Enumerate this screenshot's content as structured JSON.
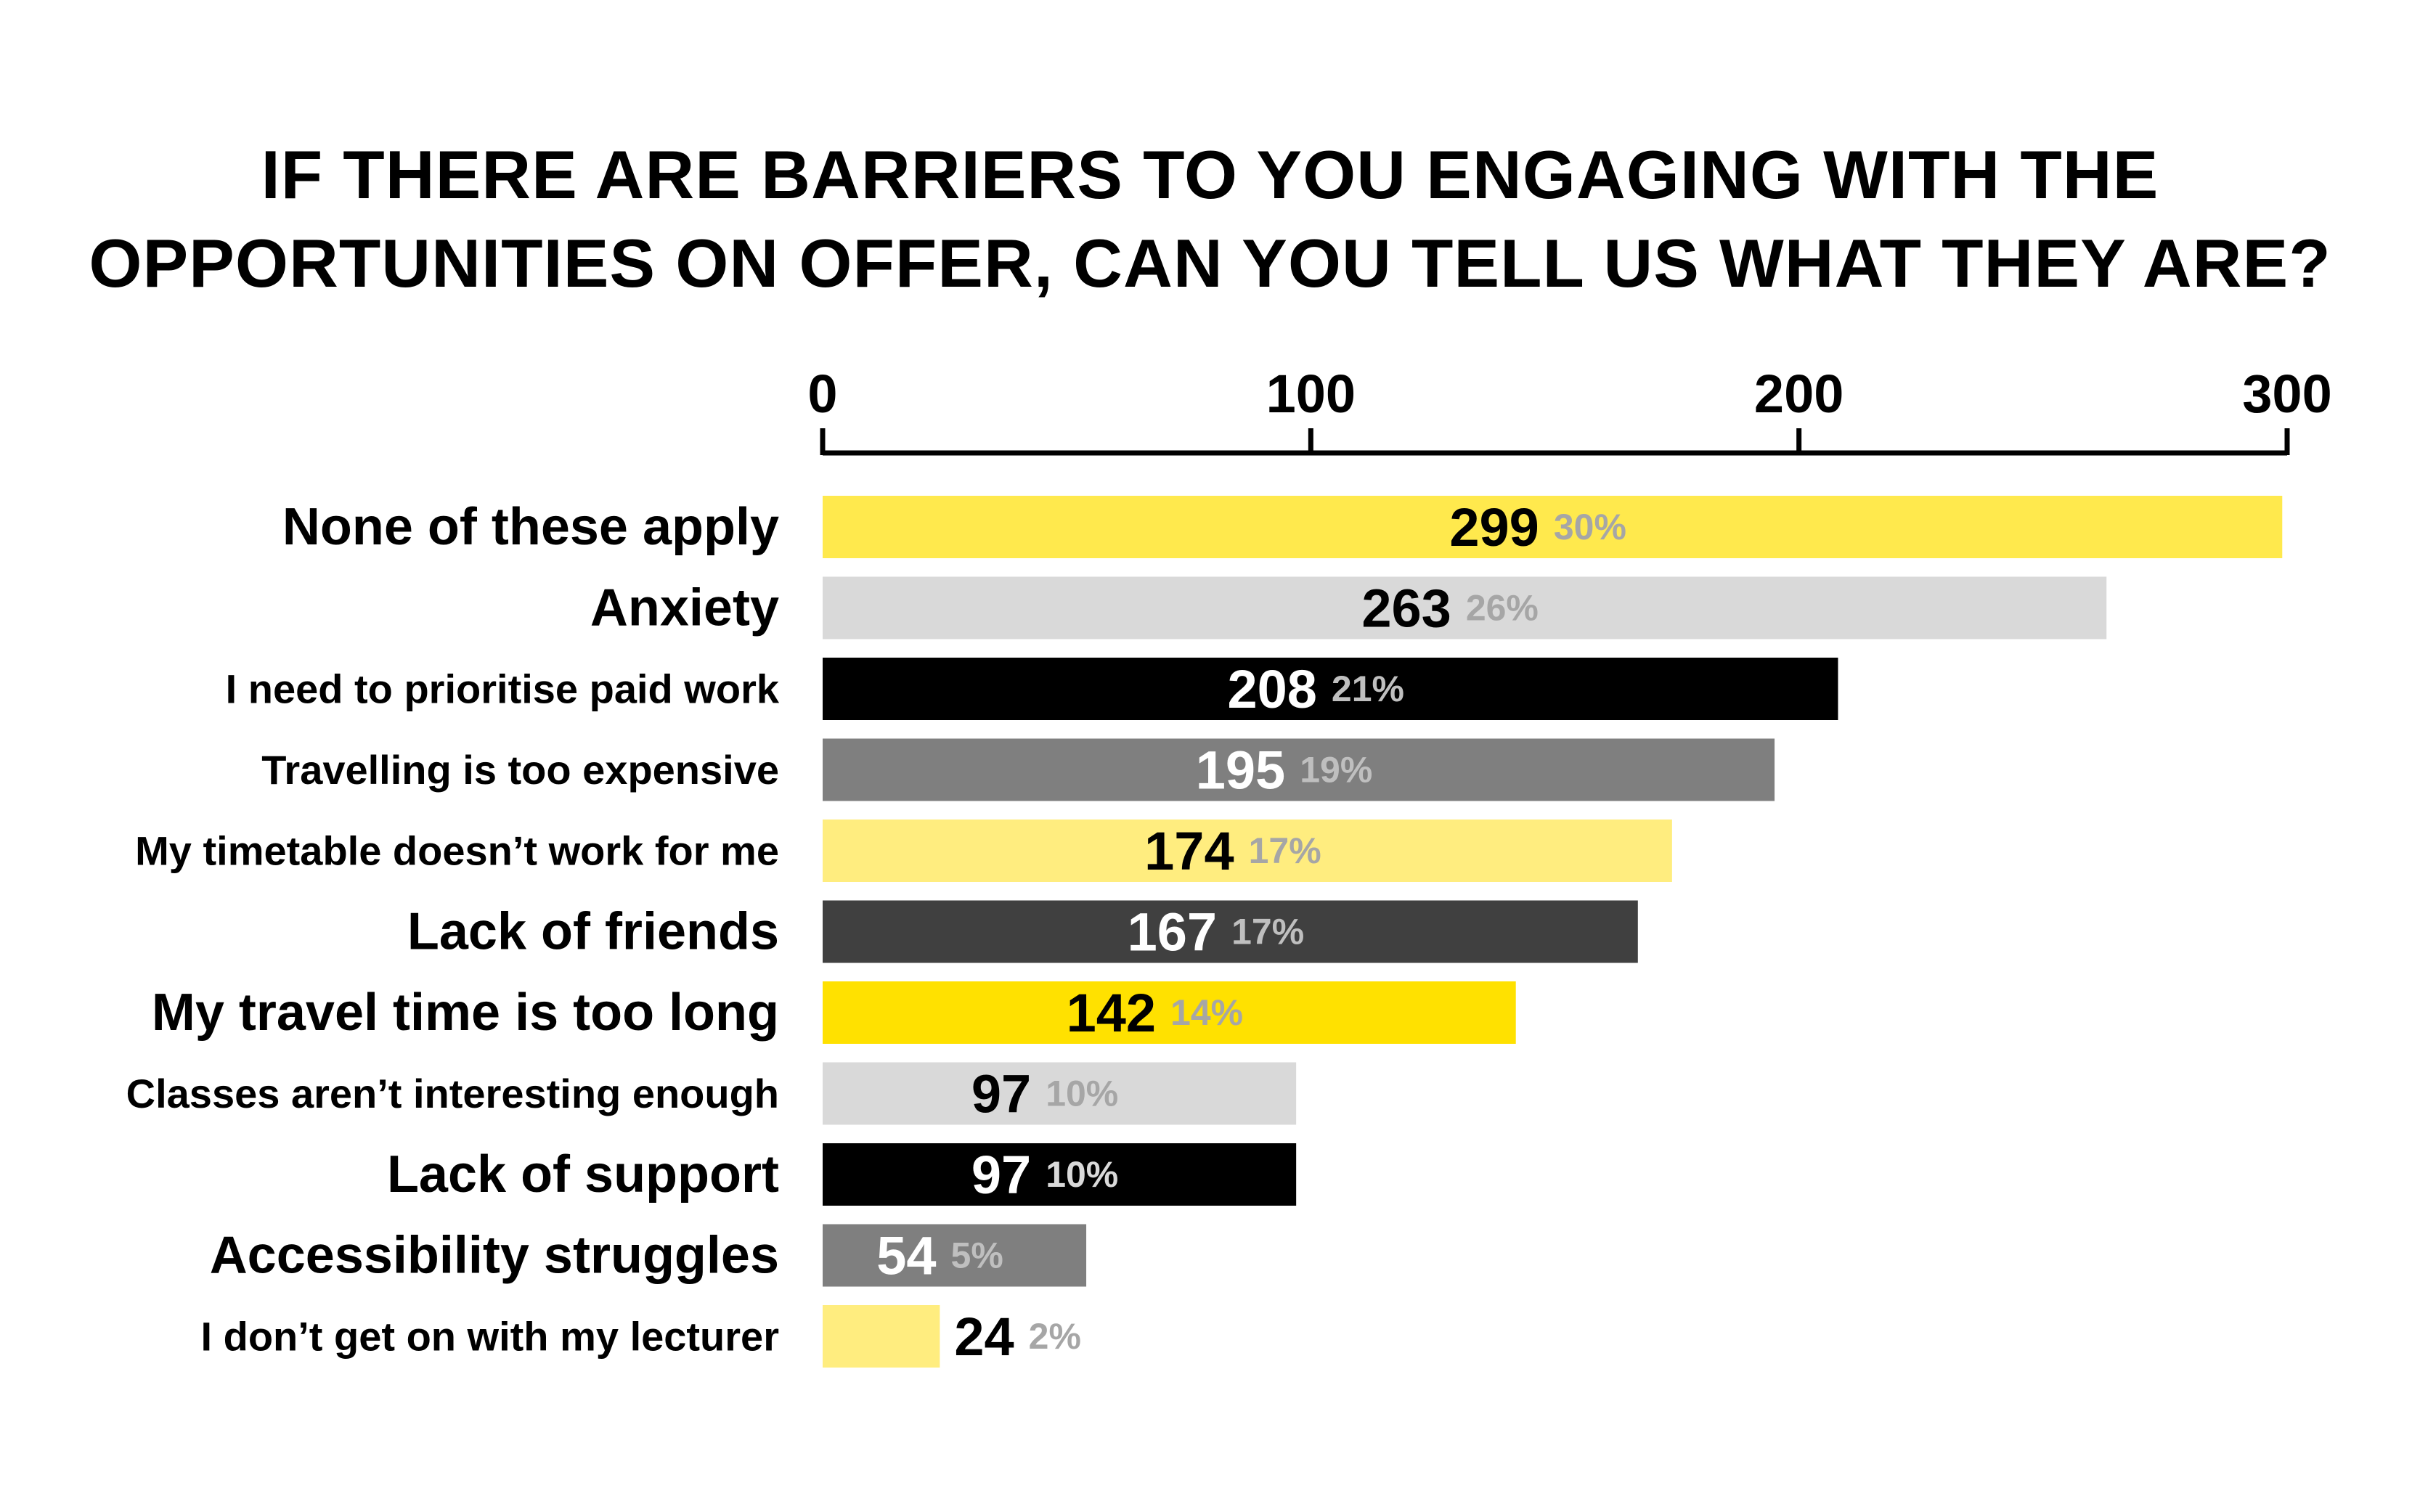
{
  "chart_data": {
    "type": "bar",
    "orientation": "horizontal",
    "title_lines": [
      "IF THERE ARE BARRIERS TO YOU ENGAGING WITH THE",
      "OPPORTUNITIES ON OFFER, CAN YOU TELL US WHAT THEY ARE?"
    ],
    "xlim": [
      0,
      300
    ],
    "x_ticks": [
      0,
      100,
      200,
      300
    ],
    "axis_position": "top",
    "grid": false,
    "legend": "none",
    "categories": [
      "None of these apply",
      "Anxiety",
      "I need to prioritise paid work",
      "Travelling is too expensive",
      "My timetable doesn’t work for me",
      "Lack of friends",
      "My travel time is too long",
      "Classes aren’t interesting enough",
      "Lack of support",
      "Accessibility struggles",
      "I don’t get on with my lecturer"
    ],
    "values": [
      299,
      263,
      208,
      195,
      174,
      167,
      142,
      97,
      97,
      54,
      24
    ],
    "percent_labels": [
      "30%",
      "26%",
      "21%",
      "19%",
      "17%",
      "17%",
      "14%",
      "10%",
      "10%",
      "5%",
      "2%"
    ],
    "bar_colors": [
      "#FFE94D",
      "#D9D9D9",
      "#000000",
      "#7F7F7F",
      "#FFED7F",
      "#404040",
      "#FFE100",
      "#D9D9D9",
      "#000000",
      "#7F7F7F",
      "#FFED7F"
    ],
    "value_label_colors": [
      "#000000",
      "#000000",
      "#FFFFFF",
      "#FFFFFF",
      "#000000",
      "#FFFFFF",
      "#000000",
      "#000000",
      "#FFFFFF",
      "#FFFFFF",
      "#000000"
    ],
    "percent_label_colors": [
      "#A6A6A6",
      "#A6A6A6",
      "#BFBFBF",
      "#BFBFBF",
      "#A6A6A6",
      "#BFBFBF",
      "#A6A6A6",
      "#A6A6A6",
      "#D9D9D9",
      "#BFBFBF",
      "#A6A6A6"
    ],
    "category_label_emphasis": [
      "large",
      "large",
      "small",
      "small",
      "small",
      "large",
      "large",
      "small",
      "large",
      "large",
      "small"
    ]
  }
}
